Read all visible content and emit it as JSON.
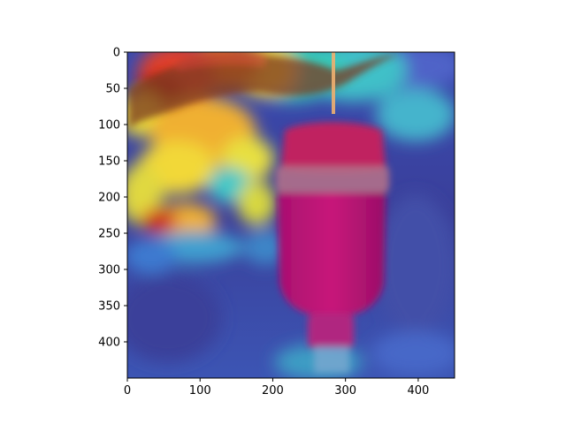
{
  "figure": {
    "background": "#ffffff",
    "axis_color": "#000000"
  },
  "image": {
    "description_kind": "photo-with-heatmap-overlay",
    "colormap": "jet",
    "overlay_colors": {
      "low": "#2a2fa0",
      "mid_low": "#36c6d8",
      "mid": "#e8d83a",
      "mid_high": "#f07a1a",
      "high": "#b01208",
      "bottle": "#c0106a"
    },
    "pixel_extent": {
      "x": [
        0,
        450
      ],
      "y": [
        0,
        450
      ]
    }
  },
  "axes": {
    "x_ticks": [
      {
        "value": 0,
        "label": "0"
      },
      {
        "value": 100,
        "label": "100"
      },
      {
        "value": 200,
        "label": "200"
      },
      {
        "value": 300,
        "label": "300"
      },
      {
        "value": 400,
        "label": "400"
      }
    ],
    "y_ticks": [
      {
        "value": 0,
        "label": "0"
      },
      {
        "value": 50,
        "label": "50"
      },
      {
        "value": 100,
        "label": "100"
      },
      {
        "value": 150,
        "label": "150"
      },
      {
        "value": 200,
        "label": "200"
      },
      {
        "value": 250,
        "label": "250"
      },
      {
        "value": 300,
        "label": "300"
      },
      {
        "value": 350,
        "label": "350"
      },
      {
        "value": 400,
        "label": "400"
      }
    ]
  }
}
